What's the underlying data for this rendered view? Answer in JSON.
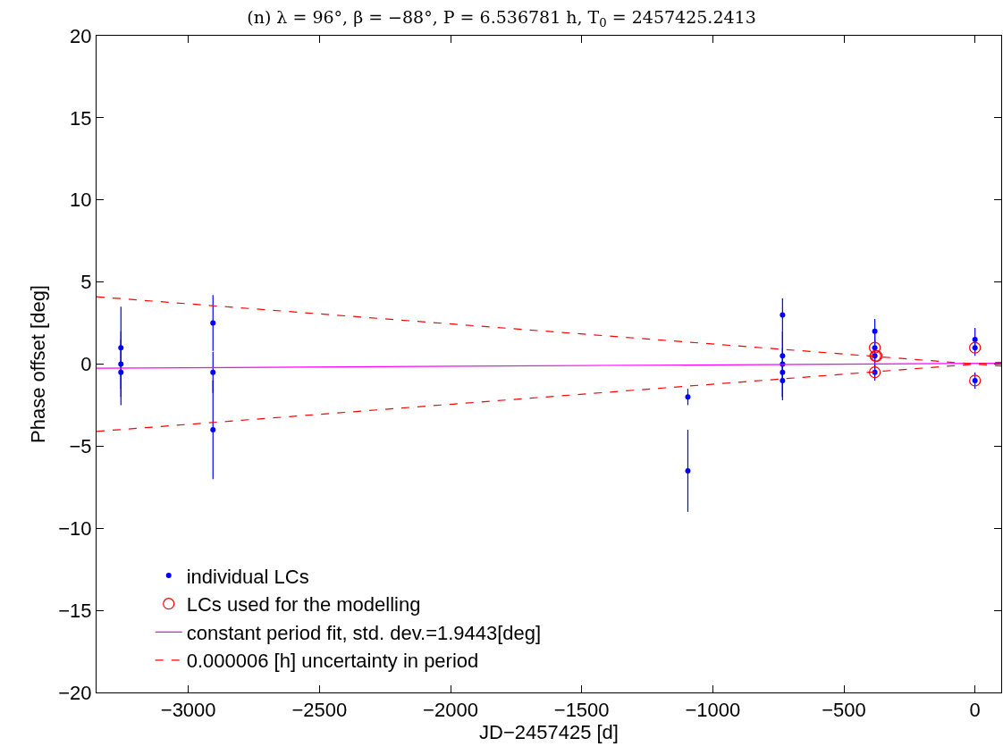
{
  "chart_data": {
    "type": "scatter",
    "title": "(n) λ = 96°, β = −88°, P = 6.536781 h, T$_{0}$ = 2457425.2413",
    "xlabel": "JD−2457425 [d]",
    "ylabel": "Phase offset [deg]",
    "xlim": [
      -3350,
      100
    ],
    "xticks": [
      -3000,
      -2500,
      -2000,
      -1500,
      -1000,
      -500,
      0
    ],
    "ylim": [
      -20,
      20
    ],
    "yticks": [
      -20,
      -15,
      -10,
      -5,
      0,
      5,
      10,
      15,
      20
    ],
    "grid": false,
    "legend": "bottom",
    "series": [
      {
        "name": "individual LCs",
        "marker": "circle",
        "color": "#0000ff",
        "x": [
          -3257,
          -3257,
          -3257,
          -2906,
          -2906,
          -2906,
          -1095,
          -1095,
          -734,
          -734,
          -734,
          -734,
          -734,
          -382,
          -382,
          -382,
          -382,
          0,
          0,
          0
        ],
        "values": [
          1.0,
          0,
          -0.5,
          2.5,
          -0.5,
          -4,
          -2,
          -6.5,
          3.0,
          0.5,
          0,
          -0.5,
          -1,
          2.0,
          1.0,
          0.5,
          -0.5,
          1.5,
          1.0,
          -1.0
        ],
        "errors": [
          2.5,
          2,
          2,
          1.7,
          1.25,
          3,
          0.5,
          2.5,
          1,
          1.5,
          2,
          1.5,
          1.2,
          0.75,
          1,
          1,
          0.5,
          0.7,
          0.5,
          0.5
        ]
      },
      {
        "name": "LCs used for the modelling",
        "marker": "circle",
        "color": "#ff0000",
        "x": [
          -382,
          -380,
          -375,
          -382,
          0,
          0
        ],
        "values": [
          1.0,
          0.5,
          0.5,
          -0.5,
          1.0,
          -1.0
        ]
      },
      {
        "name": "constant period fit, std. dev.=1.9443[deg]",
        "type": "line",
        "marker": "none",
        "line_style": "solid",
        "color": "#ff00ff",
        "x": [
          -3350,
          100
        ],
        "values": [
          -0.25,
          0.05
        ]
      },
      {
        "name": "0.000006 [h] uncertainty in period",
        "type": "line",
        "marker": "none",
        "line_style": "dashed",
        "color": "#ff0000",
        "x": [
          -3350,
          100
        ],
        "values": [
          4.1,
          -0.12
        ]
      },
      {
        "type": "line",
        "marker": "none",
        "line_style": "dashed",
        "color": "#ff0000",
        "x": [
          -3350,
          100
        ],
        "values": [
          -4.1,
          0.12
        ]
      }
    ]
  }
}
